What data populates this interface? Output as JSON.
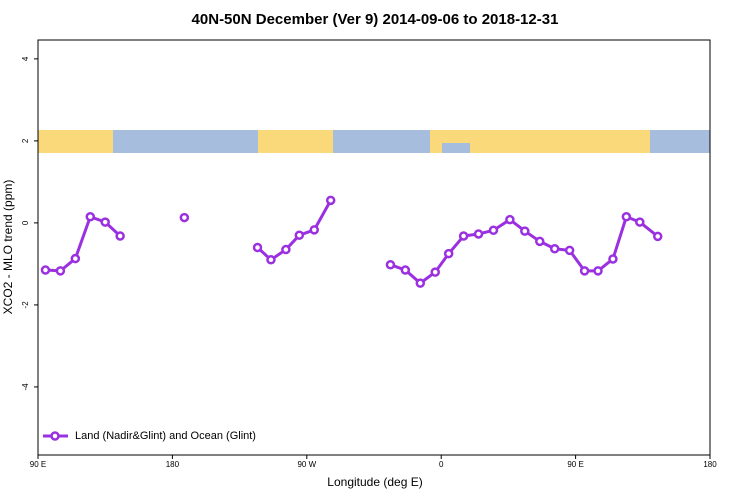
{
  "chart_data": {
    "type": "line",
    "title": "40N-50N December (Ver 9)   2014-09-06 to 2018-12-31",
    "x_label": "Longitude (deg E)",
    "y_label": "XCO2 - MLO trend (ppm)",
    "x": [
      95,
      105,
      115,
      125,
      135,
      145,
      165,
      188,
      215,
      237,
      246,
      256,
      265,
      275,
      286,
      305,
      326,
      336,
      346,
      356,
      365,
      375,
      385,
      395,
      406,
      416,
      426,
      436,
      446,
      456,
      465,
      475,
      484,
      493,
      505
    ],
    "series": [
      {
        "name": "Land (Nadir&Glint) and Ocean (Glint)",
        "color": "#9b30e0",
        "values": [
          -1.15,
          -1.17,
          -0.87,
          0.15,
          0.02,
          -0.32,
          null,
          0.13,
          null,
          -0.6,
          -0.9,
          -0.65,
          -0.3,
          -0.17,
          0.55,
          null,
          -1.02,
          -1.15,
          -1.47,
          -1.2,
          -0.75,
          -0.32,
          -0.27,
          -0.18,
          0.08,
          -0.2,
          -0.45,
          -0.63,
          -0.67,
          -1.17,
          -1.17,
          -0.88,
          0.15,
          0.02,
          -0.33
        ]
      }
    ],
    "xlim": [
      90,
      540
    ],
    "xticks": [
      {
        "value": 90,
        "label": "90 E"
      },
      180,
      {
        "value": 270,
        "label": "90 W"
      },
      {
        "value": 360,
        "label": "0"
      },
      {
        "value": 450,
        "label": "90 E"
      },
      180
    ],
    "ylim": [
      -5.66,
      4.46
    ],
    "yticks": [
      -4,
      -2,
      0,
      2,
      4
    ],
    "legend": "bottom-left"
  }
}
